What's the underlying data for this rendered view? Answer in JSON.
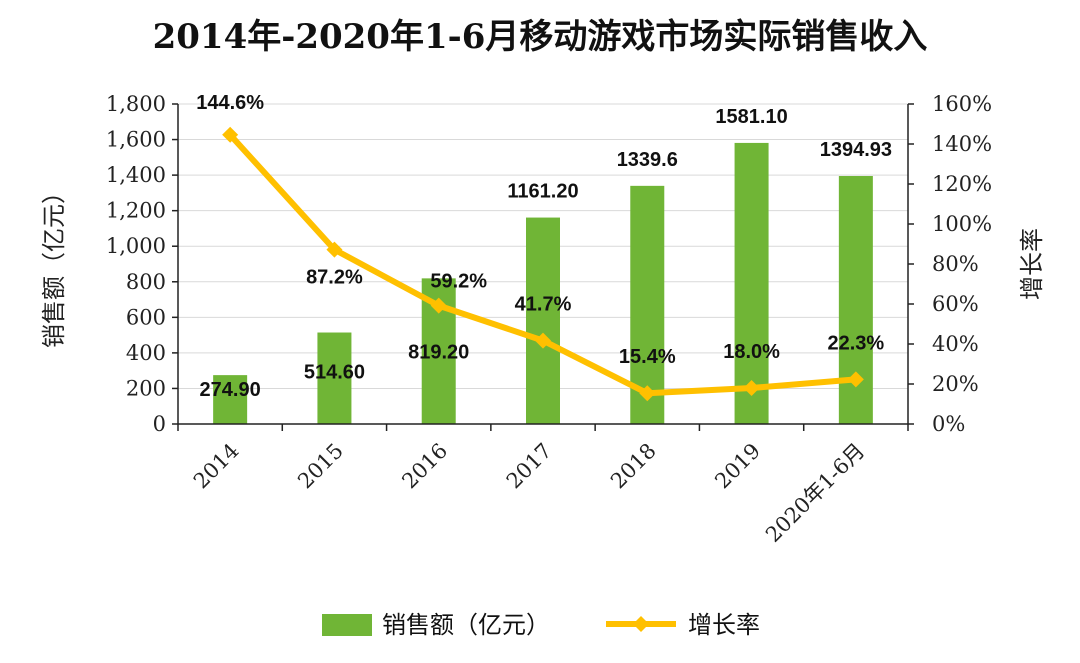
{
  "chart_data": {
    "type": "bar",
    "title": "2014年-2020年1-6月移动游戏市场实际销售收入",
    "categories": [
      "2014",
      "2015",
      "2016",
      "2017",
      "2018",
      "2019",
      "2020年1-6月"
    ],
    "series": [
      {
        "name": "销售额（亿元）",
        "type": "bar",
        "axis": "left",
        "color": "#70b536",
        "values": [
          274.9,
          514.6,
          819.2,
          1161.2,
          1339.6,
          1581.1,
          1394.93
        ],
        "labels": [
          "274.90",
          "514.60",
          "819.20",
          "1161.20",
          "1339.6",
          "1581.10",
          "1394.93"
        ]
      },
      {
        "name": "增长率",
        "type": "line",
        "axis": "right",
        "color": "#ffc000",
        "marker": "diamond",
        "values": [
          144.6,
          87.2,
          59.2,
          41.7,
          15.4,
          18.0,
          22.3
        ],
        "labels": [
          "144.6%",
          "87.2%",
          "59.2%",
          "41.7%",
          "15.4%",
          "18.0%",
          "22.3%"
        ]
      }
    ],
    "ylabel": "销售额（亿元）",
    "ylim": [
      0,
      1800
    ],
    "yticks": [
      "0",
      "200",
      "400",
      "600",
      "800",
      "1,000",
      "1,200",
      "1,400",
      "1,600",
      "1,800"
    ],
    "y2label": "增长率",
    "y2lim": [
      0,
      160
    ],
    "y2ticks": [
      "0%",
      "20%",
      "40%",
      "60%",
      "80%",
      "100%",
      "120%",
      "140%",
      "160%"
    ],
    "grid": true,
    "legend": "bottom"
  }
}
